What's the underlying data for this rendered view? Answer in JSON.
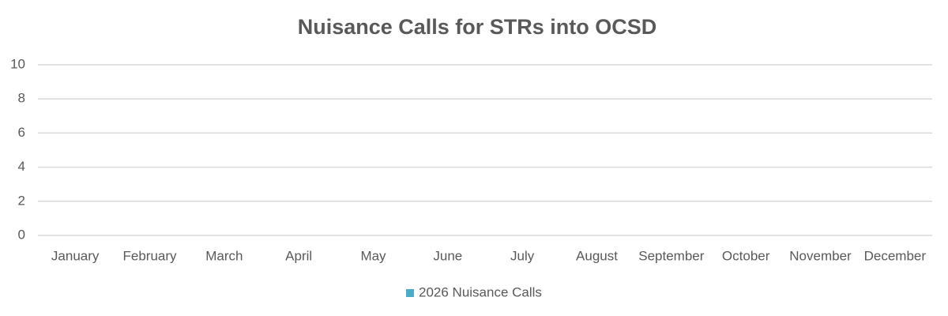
{
  "chart_data": {
    "type": "bar",
    "title": "Nuisance Calls for STRs into OCSD",
    "categories": [
      "January",
      "February",
      "March",
      "April",
      "May",
      "June",
      "July",
      "August",
      "September",
      "October",
      "November",
      "December"
    ],
    "series": [
      {
        "name": "2026 Nuisance Calls",
        "color": "#4bacc6",
        "values": [
          0,
          0,
          0,
          0,
          0,
          0,
          0,
          0,
          0,
          0,
          0,
          0
        ]
      }
    ],
    "ylim": [
      0,
      10
    ],
    "yticks": [
      0,
      2,
      4,
      6,
      8,
      10
    ],
    "grid": true,
    "legend": "bottom"
  }
}
